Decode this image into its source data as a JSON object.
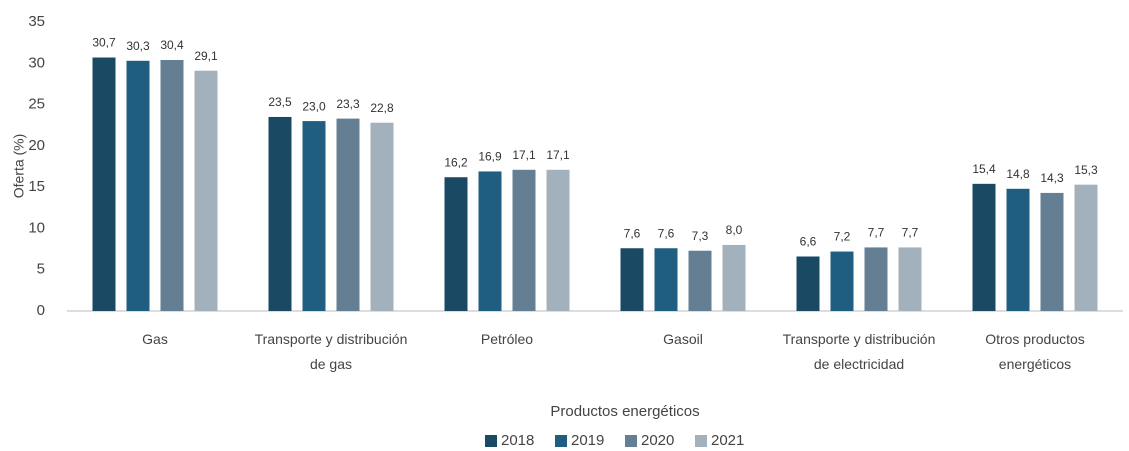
{
  "chart_data": {
    "type": "bar",
    "categories": [
      "Gas",
      "Transporte y distribución de gas",
      "Petróleo",
      "Gasoil",
      "Transporte y distribución de electricidad",
      "Otros productos energéticos"
    ],
    "series": [
      {
        "name": "2018",
        "color": "#1a4a63",
        "values": [
          30.7,
          23.5,
          16.2,
          7.6,
          6.6,
          15.4
        ],
        "value_labels": [
          "30,7",
          "23,5",
          "16,2",
          "7,6",
          "6,6",
          "15,4"
        ]
      },
      {
        "name": "2019",
        "color": "#1f5e80",
        "values": [
          30.3,
          23.0,
          16.9,
          7.6,
          7.2,
          14.8
        ],
        "value_labels": [
          "30,3",
          "23,0",
          "16,9",
          "7,6",
          "7,2",
          "14,8"
        ]
      },
      {
        "name": "2020",
        "color": "#647f94",
        "values": [
          30.4,
          23.3,
          17.1,
          7.3,
          7.7,
          14.3
        ],
        "value_labels": [
          "30,4",
          "23,3",
          "17,1",
          "7,3",
          "7,7",
          "14,3"
        ]
      },
      {
        "name": "2021",
        "color": "#a3b1bd",
        "values": [
          29.1,
          22.8,
          17.1,
          8.0,
          7.7,
          15.3
        ],
        "value_labels": [
          "29,1",
          "22,8",
          "17,1",
          "8,0",
          "7,7",
          "15,3"
        ]
      }
    ],
    "x_label": "Productos energéticos",
    "y_label": "Oferta (%)",
    "ylim": [
      0,
      35
    ],
    "yticks": [
      0,
      5,
      10,
      15,
      20,
      25,
      30,
      35
    ],
    "grid": false,
    "legend": "bottom"
  }
}
